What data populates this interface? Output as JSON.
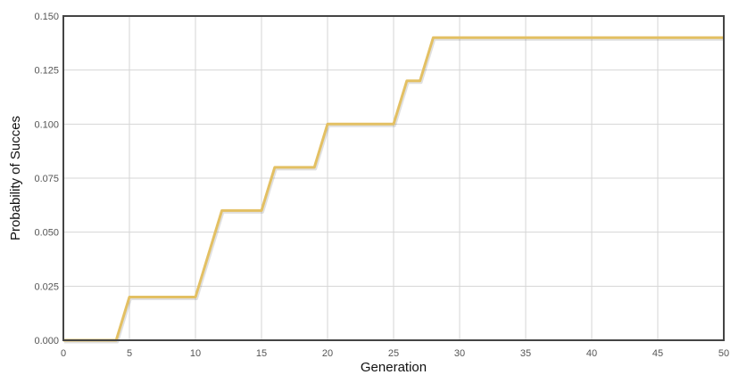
{
  "chart_data": {
    "type": "line",
    "title": "",
    "xlabel": "Generation",
    "ylabel": "Probability of Succes",
    "xlim": [
      0,
      50
    ],
    "ylim": [
      0,
      0.15
    ],
    "x_ticks": [
      0,
      5,
      10,
      15,
      20,
      25,
      30,
      35,
      40,
      45,
      50
    ],
    "y_ticks": [
      0,
      0.025,
      0.05,
      0.075,
      0.1,
      0.125,
      0.15
    ],
    "x_tick_labels": [
      "0",
      "5",
      "10",
      "15",
      "20",
      "25",
      "30",
      "35",
      "40",
      "45",
      "50"
    ],
    "y_tick_labels": [
      "0.000",
      "0.025",
      "0.050",
      "0.075",
      "0.100",
      "0.125",
      "0.150"
    ],
    "grid": true,
    "legend": "none",
    "series": [
      {
        "color": "#e3c063",
        "points": [
          [
            0,
            0
          ],
          [
            4,
            0
          ],
          [
            5,
            0.02
          ],
          [
            10,
            0.02
          ],
          [
            12,
            0.06
          ],
          [
            15,
            0.06
          ],
          [
            16,
            0.08
          ],
          [
            19,
            0.08
          ],
          [
            20,
            0.1
          ],
          [
            25,
            0.1
          ],
          [
            26,
            0.12
          ],
          [
            27,
            0.12
          ],
          [
            28,
            0.14
          ],
          [
            50,
            0.14
          ]
        ]
      }
    ]
  }
}
